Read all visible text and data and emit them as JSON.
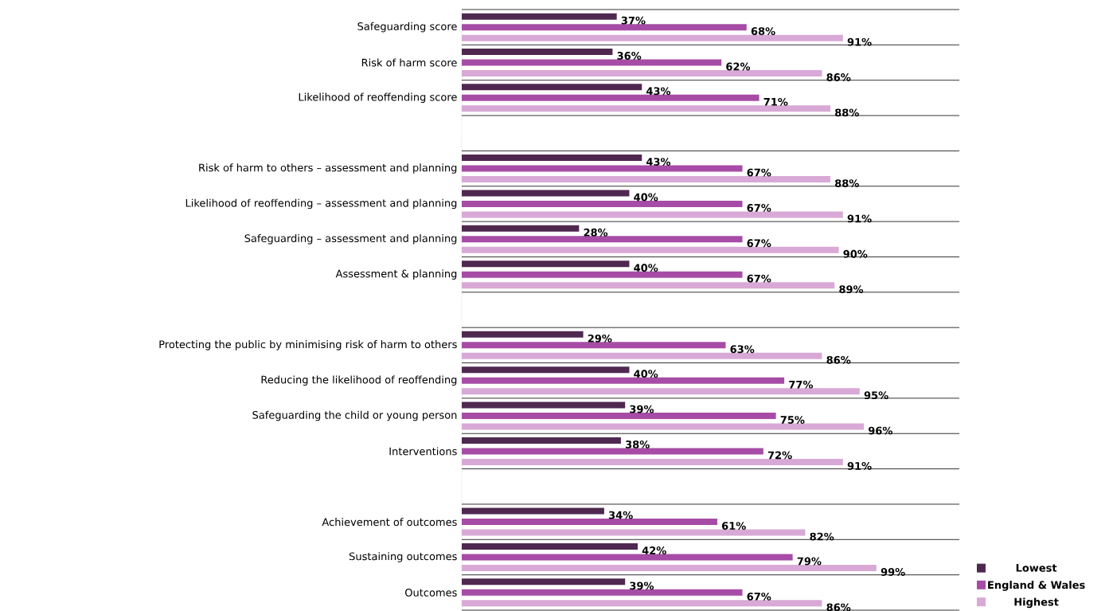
{
  "chart_data": {
    "type": "bar",
    "orientation": "horizontal",
    "grid": "y",
    "legend": "bottom right",
    "categories": [
      "Safeguarding score",
      "Risk of harm score",
      "Likelihood of reoffending score",
      null,
      "Risk of harm to others – assessment and planning",
      "Likelihood of reoffending – assessment and planning",
      "Safeguarding – assessment and planning",
      "Assessment & planning",
      null,
      "Protecting the public by minimising risk of harm to others",
      "Reducing the likelihood of reoffending",
      "Safeguarding the child or young person",
      "Interventions",
      null,
      "Achievement of outcomes",
      "Sustaining outcomes",
      "Outcomes"
    ],
    "series": [
      {
        "name": "Lowest",
        "color": "#4f2850",
        "values": [
          37,
          36,
          43,
          null,
          43,
          40,
          28,
          40,
          null,
          29,
          40,
          39,
          38,
          null,
          34,
          42,
          39
        ],
        "value_labels": [
          "37%",
          "36%",
          "43%",
          null,
          "43%",
          "40%",
          "28%",
          "40%",
          null,
          "29%",
          "40%",
          "39%",
          "38%",
          null,
          "34%",
          "42%",
          "39%"
        ]
      },
      {
        "name": "England & Wales",
        "color": "#a64ca6",
        "values": [
          68,
          62,
          71,
          null,
          67,
          67,
          67,
          67,
          null,
          63,
          77,
          75,
          72,
          null,
          61,
          79,
          67
        ],
        "value_labels": [
          "68%",
          "62%",
          "71%",
          null,
          "67%",
          "67%",
          "67%",
          "67%",
          null,
          "63%",
          "77%",
          "75%",
          "72%",
          null,
          "61%",
          "79%",
          "67%"
        ]
      },
      {
        "name": "Highest",
        "color": "#d8a9d6",
        "values": [
          91,
          86,
          88,
          null,
          88,
          91,
          90,
          89,
          null,
          86,
          95,
          96,
          91,
          null,
          82,
          99,
          86
        ],
        "value_labels": [
          "91%",
          "86%",
          "88%",
          null,
          "88%",
          "91%",
          "90%",
          "89%",
          null,
          "86%",
          "95%",
          "96%",
          "91%",
          null,
          "82%",
          "99%",
          "86%"
        ]
      }
    ]
  }
}
